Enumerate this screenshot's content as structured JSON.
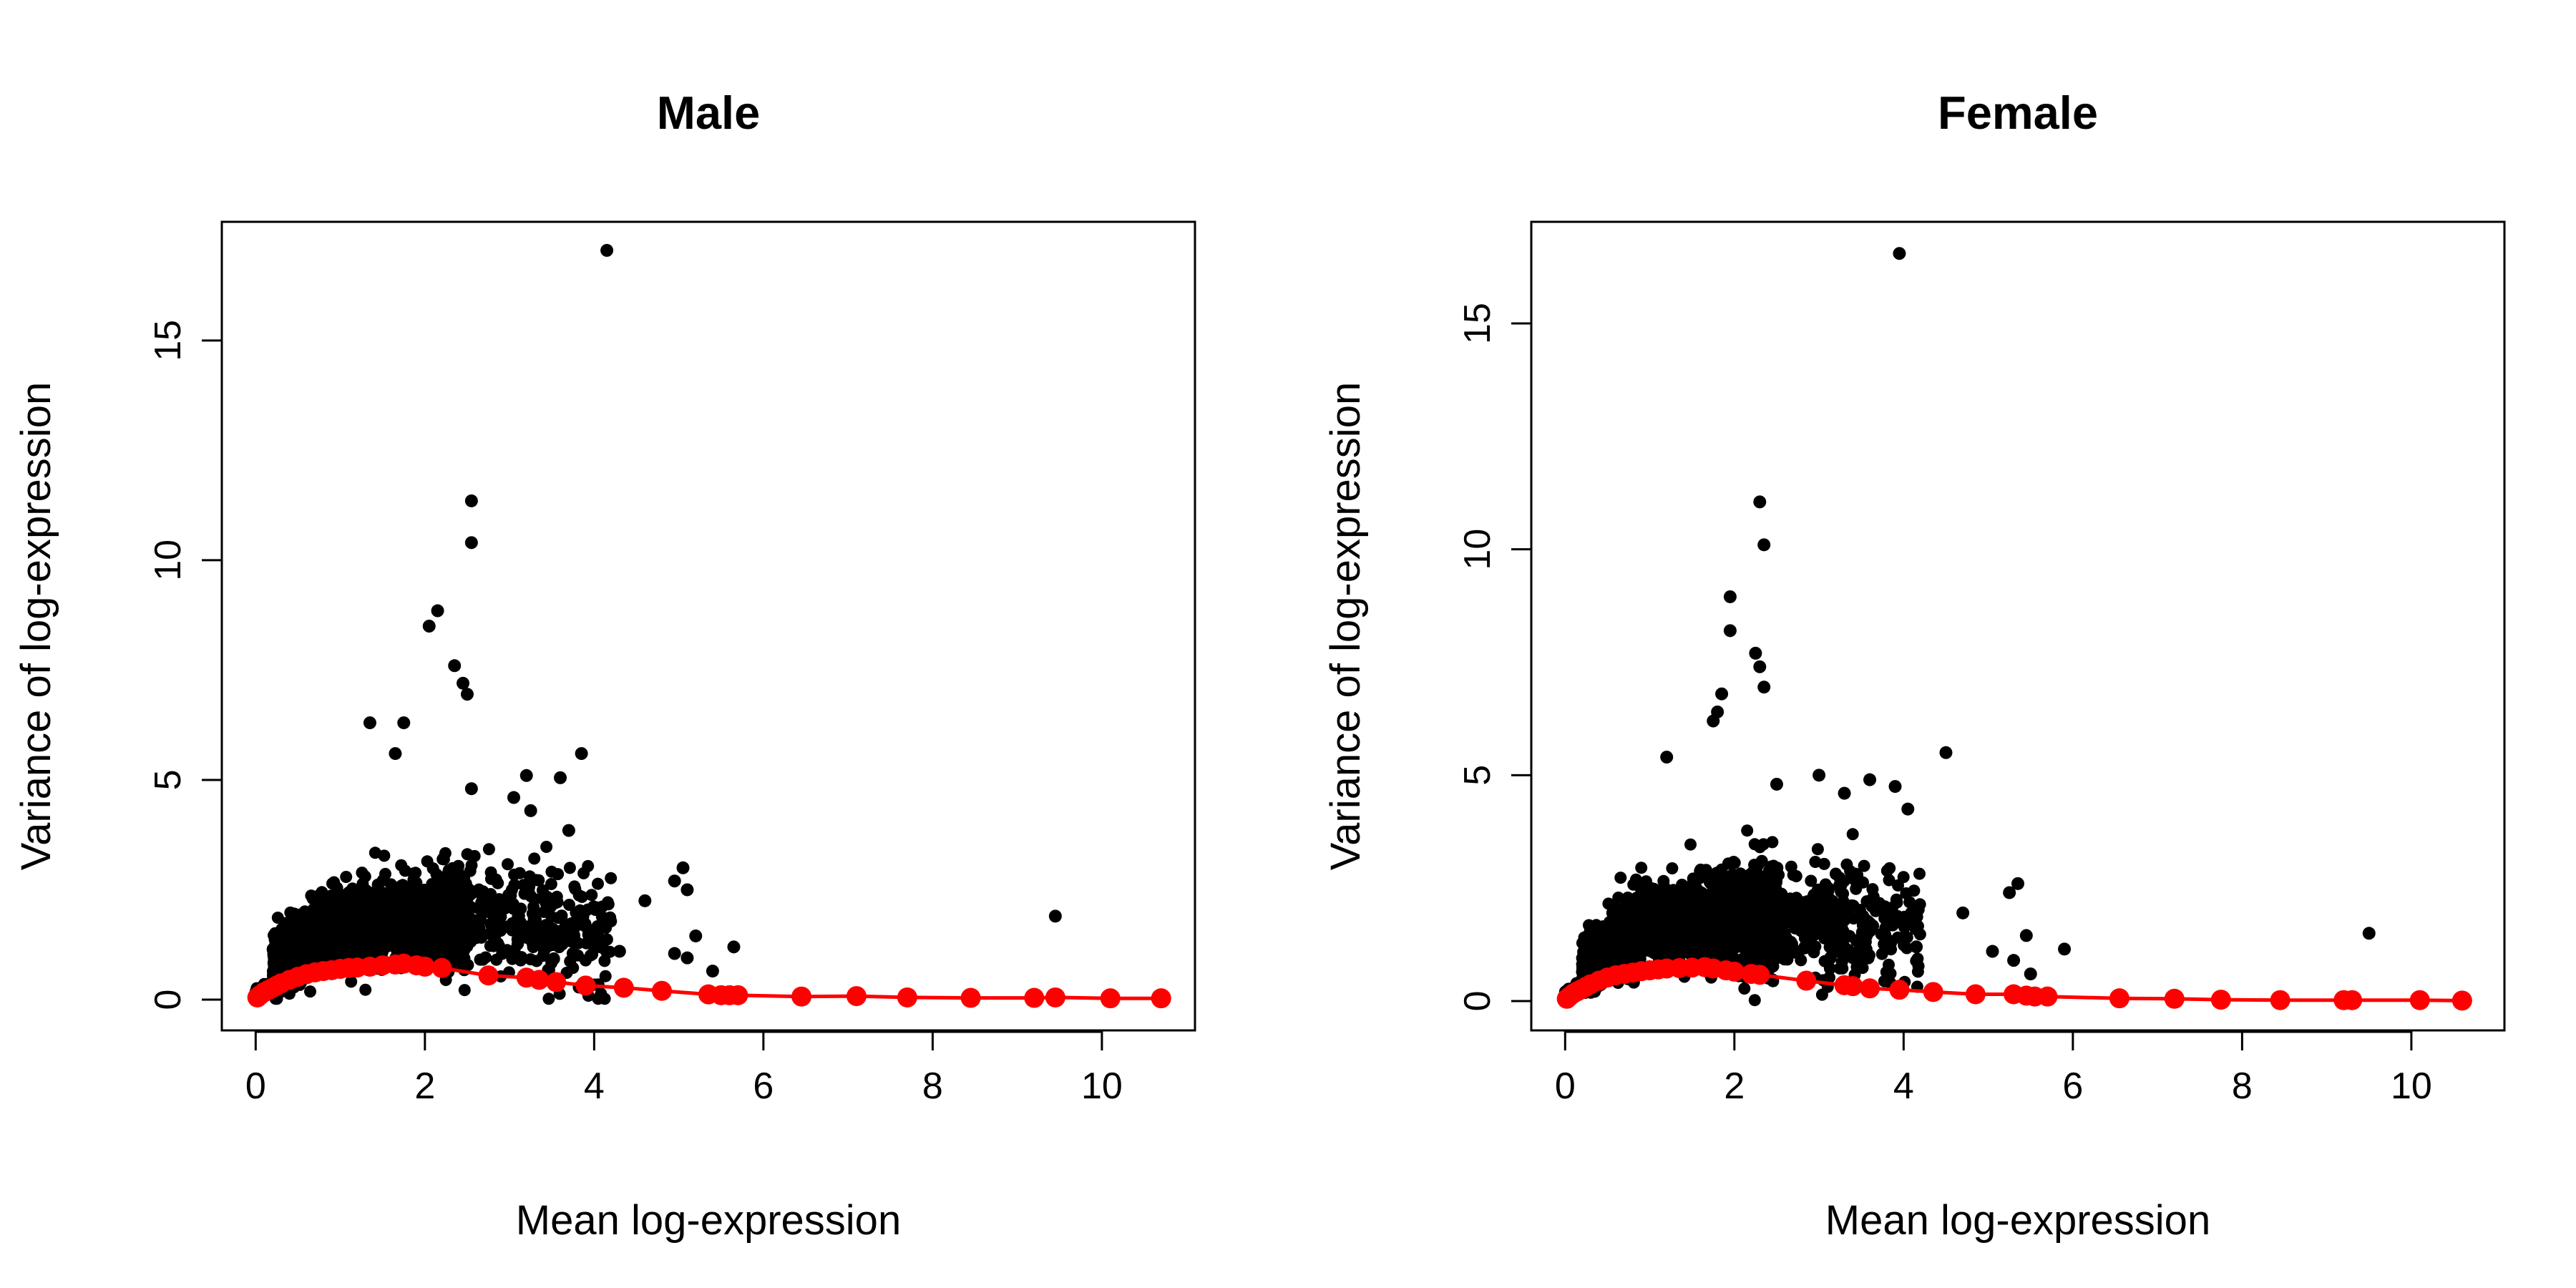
{
  "chart_data": [
    {
      "type": "scatter",
      "title": "Male",
      "xlabel": "Mean log-expression",
      "ylabel": "Variance of log-expression",
      "xlim": [
        -0.4,
        11.1
      ],
      "ylim": [
        -0.7,
        17.7
      ],
      "xticks": [
        0,
        2,
        4,
        6,
        8,
        10
      ],
      "yticks": [
        0,
        5,
        10,
        15
      ],
      "grid": false,
      "colors": {
        "points": "#000000",
        "trend": "#ff0000"
      },
      "outliers": [
        {
          "x": 4.15,
          "y": 17.05
        },
        {
          "x": 2.55,
          "y": 11.35
        },
        {
          "x": 2.55,
          "y": 10.4
        },
        {
          "x": 2.15,
          "y": 8.85
        },
        {
          "x": 2.05,
          "y": 8.5
        },
        {
          "x": 2.35,
          "y": 7.6
        },
        {
          "x": 2.45,
          "y": 7.2
        },
        {
          "x": 2.5,
          "y": 6.95
        },
        {
          "x": 1.35,
          "y": 6.3
        },
        {
          "x": 1.75,
          "y": 6.3
        },
        {
          "x": 3.85,
          "y": 5.6
        },
        {
          "x": 1.65,
          "y": 5.6
        },
        {
          "x": 3.2,
          "y": 5.1
        },
        {
          "x": 3.6,
          "y": 5.05
        },
        {
          "x": 2.55,
          "y": 4.8
        },
        {
          "x": 3.05,
          "y": 4.6
        },
        {
          "x": 3.25,
          "y": 4.3
        },
        {
          "x": 3.7,
          "y": 3.85
        },
        {
          "x": 5.05,
          "y": 3.0
        },
        {
          "x": 4.95,
          "y": 2.7
        },
        {
          "x": 5.1,
          "y": 2.5
        },
        {
          "x": 4.6,
          "y": 2.25
        },
        {
          "x": 9.45,
          "y": 1.9
        },
        {
          "x": 5.2,
          "y": 1.45
        },
        {
          "x": 5.65,
          "y": 1.2
        },
        {
          "x": 4.95,
          "y": 1.05
        },
        {
          "x": 5.1,
          "y": 0.95
        },
        {
          "x": 4.3,
          "y": 1.1
        },
        {
          "x": 5.4,
          "y": 0.65
        },
        {
          "x": 4.1,
          "y": 1.3
        }
      ],
      "trend": {
        "x": [
          0.02,
          0.05,
          0.1,
          0.15,
          0.2,
          0.25,
          0.3,
          0.4,
          0.5,
          0.6,
          0.7,
          0.8,
          0.9,
          1.0,
          1.1,
          1.2,
          1.35,
          1.5,
          1.65,
          1.75,
          1.9,
          2.0,
          2.2,
          2.75,
          3.2,
          3.35,
          3.55,
          3.9,
          4.35,
          4.8,
          5.35,
          5.5,
          5.6,
          5.7,
          6.45,
          7.1,
          7.7,
          8.45,
          9.2,
          9.45,
          10.1,
          10.7
        ],
        "y": [
          0.05,
          0.1,
          0.17,
          0.22,
          0.27,
          0.32,
          0.37,
          0.45,
          0.52,
          0.58,
          0.62,
          0.65,
          0.67,
          0.7,
          0.72,
          0.73,
          0.75,
          0.78,
          0.8,
          0.82,
          0.78,
          0.75,
          0.72,
          0.55,
          0.5,
          0.45,
          0.4,
          0.32,
          0.27,
          0.2,
          0.12,
          0.1,
          0.1,
          0.1,
          0.07,
          0.08,
          0.05,
          0.04,
          0.04,
          0.05,
          0.03,
          0.03
        ]
      }
    },
    {
      "type": "scatter",
      "title": "Female",
      "xlabel": "Mean log-expression",
      "ylabel": "Variance of log-expression",
      "xlim": [
        -0.4,
        11.1
      ],
      "ylim": [
        -0.65,
        17.25
      ],
      "xticks": [
        0,
        2,
        4,
        6,
        8,
        10
      ],
      "yticks": [
        0,
        5,
        10,
        15
      ],
      "grid": false,
      "colors": {
        "points": "#000000",
        "trend": "#ff0000"
      },
      "outliers": [
        {
          "x": 3.95,
          "y": 16.55
        },
        {
          "x": 2.3,
          "y": 11.05
        },
        {
          "x": 2.35,
          "y": 10.1
        },
        {
          "x": 1.95,
          "y": 8.95
        },
        {
          "x": 1.95,
          "y": 8.2
        },
        {
          "x": 2.25,
          "y": 7.7
        },
        {
          "x": 2.3,
          "y": 7.4
        },
        {
          "x": 2.35,
          "y": 6.95
        },
        {
          "x": 1.85,
          "y": 6.8
        },
        {
          "x": 1.8,
          "y": 6.4
        },
        {
          "x": 1.75,
          "y": 6.2
        },
        {
          "x": 4.5,
          "y": 5.5
        },
        {
          "x": 1.2,
          "y": 5.4
        },
        {
          "x": 3.0,
          "y": 5.0
        },
        {
          "x": 3.6,
          "y": 4.9
        },
        {
          "x": 3.9,
          "y": 4.75
        },
        {
          "x": 2.5,
          "y": 4.8
        },
        {
          "x": 4.05,
          "y": 4.25
        },
        {
          "x": 3.3,
          "y": 4.6
        },
        {
          "x": 5.35,
          "y": 2.6
        },
        {
          "x": 5.25,
          "y": 2.4
        },
        {
          "x": 4.7,
          "y": 1.95
        },
        {
          "x": 9.5,
          "y": 1.5
        },
        {
          "x": 5.45,
          "y": 1.45
        },
        {
          "x": 5.9,
          "y": 1.15
        },
        {
          "x": 5.05,
          "y": 1.1
        },
        {
          "x": 5.3,
          "y": 0.9
        },
        {
          "x": 5.5,
          "y": 0.6
        },
        {
          "x": 4.15,
          "y": 1.2
        }
      ],
      "trend": {
        "x": [
          0.02,
          0.05,
          0.1,
          0.15,
          0.2,
          0.25,
          0.3,
          0.4,
          0.5,
          0.6,
          0.7,
          0.8,
          0.9,
          1.0,
          1.1,
          1.2,
          1.35,
          1.5,
          1.65,
          1.75,
          1.9,
          2.0,
          2.2,
          2.3,
          2.85,
          3.3,
          3.4,
          3.6,
          3.95,
          4.35,
          4.85,
          5.3,
          5.45,
          5.55,
          5.7,
          6.55,
          7.2,
          7.75,
          8.45,
          9.2,
          9.3,
          10.1,
          10.6
        ],
        "y": [
          0.05,
          0.1,
          0.17,
          0.22,
          0.27,
          0.32,
          0.37,
          0.45,
          0.52,
          0.57,
          0.6,
          0.63,
          0.66,
          0.68,
          0.7,
          0.72,
          0.73,
          0.74,
          0.75,
          0.72,
          0.68,
          0.65,
          0.6,
          0.58,
          0.45,
          0.35,
          0.33,
          0.28,
          0.25,
          0.2,
          0.15,
          0.15,
          0.12,
          0.1,
          0.1,
          0.06,
          0.05,
          0.03,
          0.02,
          0.02,
          0.02,
          0.02,
          0.01
        ]
      }
    }
  ]
}
